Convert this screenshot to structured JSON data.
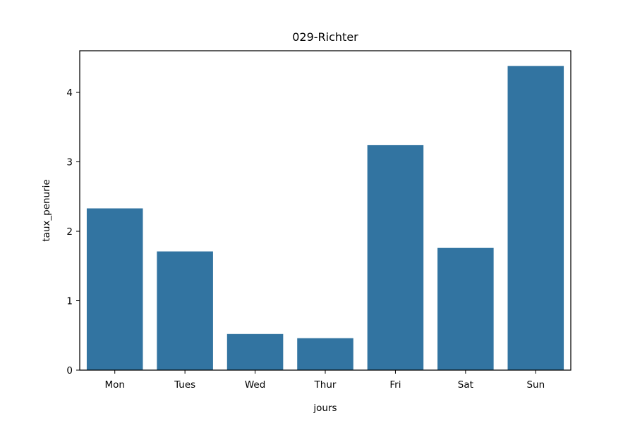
{
  "chart_data": {
    "type": "bar",
    "title": "029-Richter",
    "xlabel": "jours",
    "ylabel": "taux_penurie",
    "categories": [
      "Mon",
      "Tues",
      "Wed",
      "Thur",
      "Fri",
      "Sat",
      "Sun"
    ],
    "values": [
      2.33,
      1.71,
      0.52,
      0.46,
      3.24,
      1.76,
      4.38
    ],
    "ylim": [
      0,
      4.6
    ],
    "yticks": [
      0,
      1,
      2,
      3,
      4
    ],
    "grid": false,
    "bar_color": "#3274a1"
  }
}
